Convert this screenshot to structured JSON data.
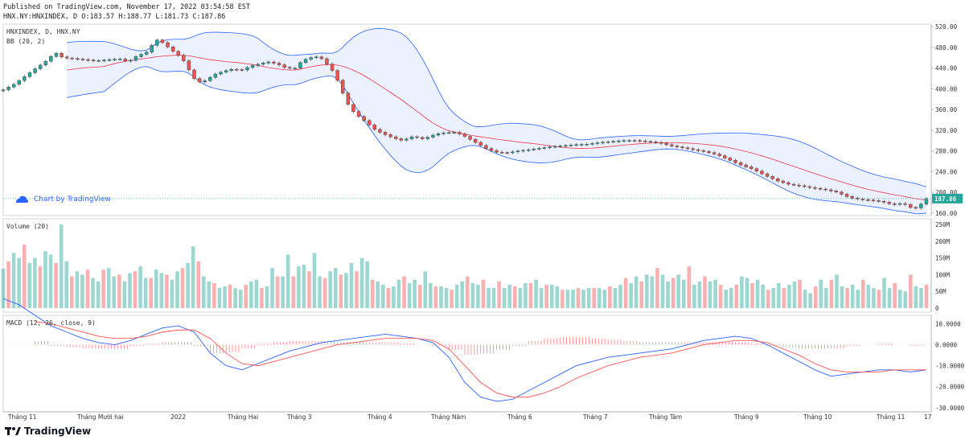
{
  "header": {
    "published": "Published on TradingView.com, November 17, 2022 03:54:58 EST",
    "ohlc": "HNX.NY:HNXINDEX, D O:183.57 H:188.77 L:181.73 C:187.86"
  },
  "main_pane": {
    "symbol_label": "HNXINDEX, D, HNX.NY",
    "bb_label": "BB (20, 2)",
    "watermark": "Chart by TradingView",
    "last_price": "187.86"
  },
  "volume_pane": {
    "label": "Volume (20)"
  },
  "macd_pane": {
    "label": "MACD (12, 26, close, 9)"
  },
  "footer": {
    "logo_text": "TradingView"
  },
  "colors": {
    "up": "#26a69a",
    "down": "#ef5350",
    "bb_mid": "#f23645",
    "bb_band": "#2962ff",
    "macd": "#2962ff",
    "signal": "#ff5252"
  },
  "chart_data": [
    {
      "type": "candlestick",
      "title": "HNXINDEX, D, HNX.NY",
      "indicator": "BB (20, 2)",
      "y_ticks": [
        "520.00",
        "480.00",
        "440.00",
        "400.00",
        "360.00",
        "320.00",
        "280.00",
        "240.00",
        "200.00",
        "160.00"
      ],
      "ylim": [
        155,
        525
      ],
      "x_ticks": [
        "Tháng 11",
        "Tháng Mười hai",
        "2022",
        "Tháng Hai",
        "Tháng 3",
        "Tháng 4",
        "Tháng Năm",
        "Tháng 6",
        "Tháng 7",
        "Tháng Tám",
        "Tháng 9",
        "Tháng 10",
        "Tháng 11",
        "17"
      ],
      "last_close": 187.86,
      "close_path": [
        [
          0,
          398
        ],
        [
          8,
          410
        ],
        [
          15,
          425
        ],
        [
          22,
          440
        ],
        [
          28,
          452
        ],
        [
          35,
          470
        ],
        [
          40,
          460
        ],
        [
          48,
          458
        ],
        [
          55,
          456
        ],
        [
          62,
          454
        ],
        [
          70,
          456
        ],
        [
          78,
          458
        ],
        [
          84,
          452
        ],
        [
          90,
          464
        ],
        [
          96,
          470
        ],
        [
          100,
          485
        ],
        [
          104,
          496
        ],
        [
          110,
          482
        ],
        [
          115,
          470
        ],
        [
          120,
          460
        ],
        [
          126,
          430
        ],
        [
          130,
          412
        ],
        [
          136,
          416
        ],
        [
          142,
          428
        ],
        [
          148,
          434
        ],
        [
          154,
          438
        ],
        [
          160,
          436
        ],
        [
          166,
          444
        ],
        [
          172,
          448
        ],
        [
          178,
          452
        ],
        [
          184,
          448
        ],
        [
          190,
          440
        ],
        [
          196,
          440
        ],
        [
          201,
          455
        ],
        [
          206,
          460
        ],
        [
          210,
          462
        ],
        [
          214,
          458
        ],
        [
          220,
          440
        ],
        [
          224,
          420
        ],
        [
          229,
          385
        ],
        [
          233,
          362
        ],
        [
          238,
          348
        ],
        [
          244,
          335
        ],
        [
          250,
          320
        ],
        [
          256,
          312
        ],
        [
          262,
          305
        ],
        [
          268,
          300
        ],
        [
          275,
          308
        ],
        [
          282,
          303
        ],
        [
          290,
          312
        ],
        [
          296,
          315
        ],
        [
          304,
          316
        ],
        [
          310,
          308
        ],
        [
          318,
          295
        ],
        [
          324,
          285
        ],
        [
          330,
          278
        ],
        [
          338,
          276
        ],
        [
          346,
          280
        ],
        [
          352,
          282
        ],
        [
          360,
          285
        ],
        [
          368,
          288
        ],
        [
          376,
          290
        ],
        [
          384,
          292
        ],
        [
          392,
          293
        ],
        [
          400,
          296
        ],
        [
          408,
          298
        ],
        [
          416,
          300
        ],
        [
          424,
          300
        ],
        [
          432,
          298
        ],
        [
          440,
          296
        ],
        [
          448,
          290
        ],
        [
          456,
          286
        ],
        [
          464,
          282
        ],
        [
          472,
          278
        ],
        [
          480,
          272
        ],
        [
          488,
          262
        ],
        [
          496,
          252
        ],
        [
          504,
          244
        ],
        [
          512,
          232
        ],
        [
          520,
          222
        ],
        [
          528,
          215
        ],
        [
          536,
          212
        ],
        [
          544,
          208
        ],
        [
          552,
          205
        ],
        [
          560,
          200
        ],
        [
          568,
          190
        ],
        [
          576,
          186
        ],
        [
          584,
          184
        ],
        [
          590,
          182
        ],
        [
          595,
          178
        ],
        [
          600,
          176
        ],
        [
          604,
          180
        ],
        [
          608,
          172
        ],
        [
          612,
          168
        ],
        [
          616,
          176
        ],
        [
          620,
          188
        ]
      ]
    },
    {
      "type": "bar",
      "title": "Volume (20)",
      "y_ticks": [
        "250M",
        "200M",
        "150M",
        "100M",
        "50M",
        "0"
      ],
      "ylim": [
        0,
        260
      ],
      "values_million": [
        118,
        140,
        165,
        150,
        190,
        135,
        150,
        125,
        170,
        160,
        135,
        250,
        140,
        95,
        110,
        100,
        115,
        90,
        80,
        115,
        120,
        95,
        100,
        80,
        105,
        110,
        125,
        90,
        90,
        115,
        105,
        100,
        85,
        110,
        120,
        135,
        185,
        140,
        95,
        80,
        75,
        60,
        65,
        70,
        60,
        55,
        70,
        80,
        85,
        60,
        65,
        120,
        95,
        95,
        160,
        95,
        125,
        130,
        110,
        165,
        95,
        90,
        110,
        120,
        100,
        105,
        135,
        110,
        150,
        140,
        85,
        80,
        70,
        60,
        65,
        85,
        95,
        75,
        85,
        70,
        110,
        75,
        65,
        65,
        60,
        55,
        70,
        80,
        95,
        75,
        70,
        85,
        60,
        60,
        80,
        60,
        70,
        65,
        60,
        75,
        75,
        85,
        60,
        70,
        70,
        65,
        55,
        55,
        55,
        60,
        55,
        60,
        60,
        60,
        55,
        65,
        60,
        70,
        90,
        75,
        95,
        80,
        100,
        95,
        120,
        100,
        80,
        90,
        100,
        85,
        125,
        70,
        80,
        95,
        80,
        85,
        70,
        55,
        60,
        70,
        95,
        90,
        75,
        85,
        70,
        55,
        60,
        75,
        60,
        70,
        80,
        85,
        55,
        45,
        65,
        85,
        60,
        85,
        100,
        65,
        60,
        70,
        55,
        85,
        70,
        60,
        55,
        90,
        60,
        75,
        55,
        50,
        100,
        65,
        60,
        70
      ]
    },
    {
      "type": "line",
      "title": "MACD (12, 26, close, 9)",
      "y_ticks": [
        "10.0000",
        "0.0000",
        "-10.0000",
        "-20.0000",
        "-30.0000"
      ],
      "ylim": [
        -32,
        14
      ],
      "series": [
        {
          "name": "MACD",
          "values": [
            22,
            19,
            14,
            9,
            6,
            3,
            1,
            0,
            2,
            5,
            8,
            9,
            6,
            -4,
            -10,
            -12,
            -9,
            -6,
            -3,
            -1,
            1,
            2,
            3,
            4,
            5,
            4,
            3,
            1,
            -6,
            -18,
            -25,
            -27,
            -26,
            -22,
            -18,
            -14,
            -10,
            -8,
            -6,
            -5,
            -4,
            -3,
            -2,
            0,
            2,
            3,
            4,
            3,
            0,
            -4,
            -8,
            -12,
            -15,
            -14,
            -13,
            -12,
            -12,
            -13,
            -12
          ]
        },
        {
          "name": "Signal",
          "values": [
            0,
            0,
            11,
            10,
            8,
            6,
            4,
            3,
            3,
            4,
            6,
            7,
            7,
            3,
            -4,
            -9,
            -10,
            -8,
            -6,
            -4,
            -2,
            0,
            1,
            2,
            3,
            3,
            3,
            2,
            -2,
            -10,
            -18,
            -23,
            -25,
            -25,
            -23,
            -20,
            -16,
            -13,
            -10,
            -8,
            -6,
            -5,
            -4,
            -2,
            0,
            1,
            2,
            2,
            1,
            -2,
            -5,
            -9,
            -12,
            -13,
            -13,
            -13,
            -12,
            -12,
            -12
          ]
        }
      ]
    }
  ]
}
